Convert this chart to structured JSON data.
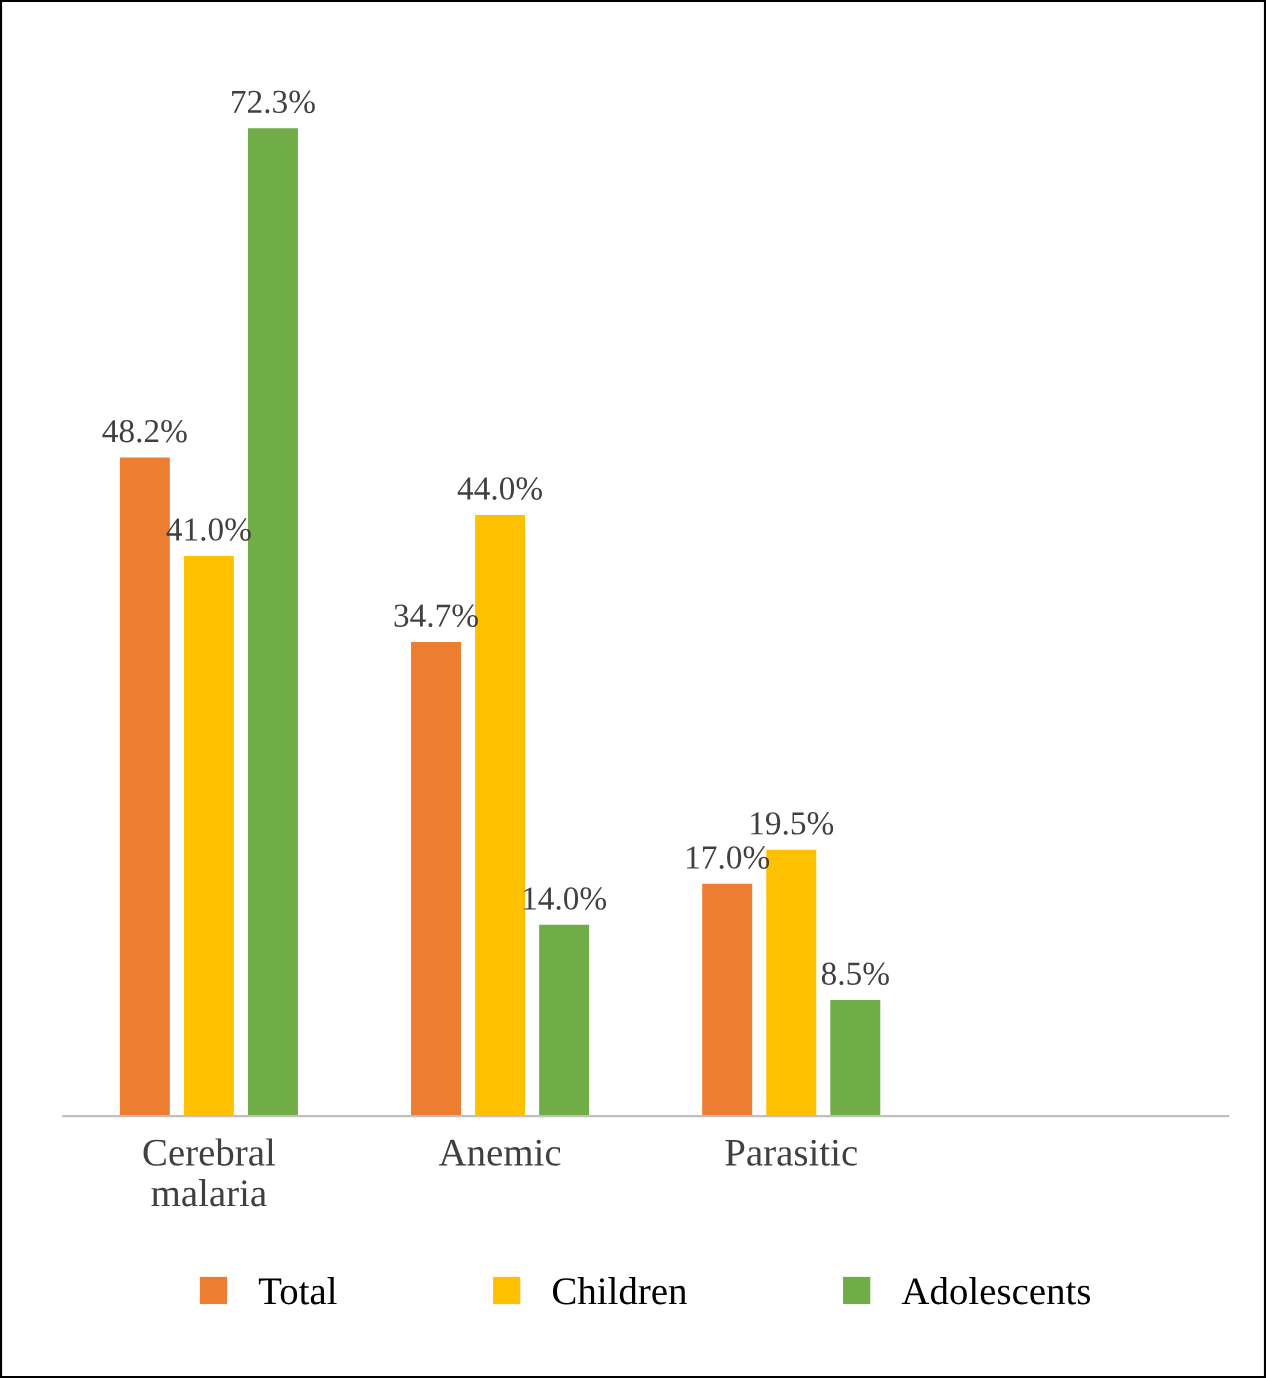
{
  "chart_data": {
    "type": "bar",
    "categories": [
      "Cerebral malaria",
      "Anemic",
      "Parasitic",
      null
    ],
    "series": [
      {
        "name": "Total",
        "color": "#ed7d31",
        "values": [
          48.2,
          34.7,
          17.0,
          null
        ],
        "value_labels": [
          "48.2%",
          "34.7%",
          "17.0%",
          null
        ]
      },
      {
        "name": "Children",
        "color": "#ffc000",
        "values": [
          41.0,
          44.0,
          19.5,
          null
        ],
        "value_labels": [
          "41.0%",
          "44.0%",
          "19.5%",
          null
        ]
      },
      {
        "name": "Adolescents",
        "color": "#70ad47",
        "values": [
          72.3,
          14.0,
          8.5,
          null
        ],
        "value_labels": [
          "72.3%",
          "14.0%",
          "8.5%",
          null
        ]
      }
    ],
    "legend": "bottom"
  }
}
